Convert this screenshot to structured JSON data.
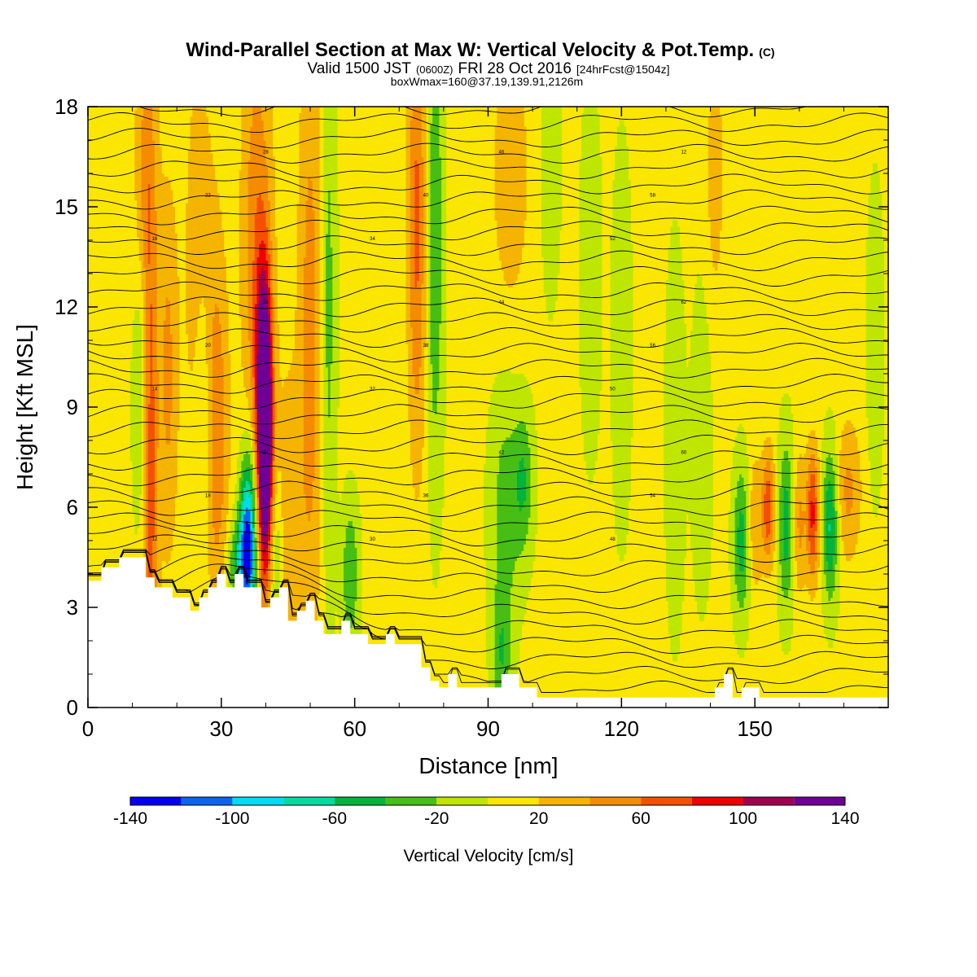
{
  "chart_data": {
    "type": "heatmap",
    "title": "Wind-Parallel Section at Max W: Vertical Velocity & Pot.Temp.",
    "title_mark": "(C)",
    "subtitle": {
      "prefix": "Valid 1500 JST",
      "utc": "(0600Z)",
      "date": "FRI 28 Oct 2016",
      "forecast": "[24hrFcst@1504z]"
    },
    "box_note": "boxWmax=160@37.19,139.91,2126m",
    "xlabel": "Distance [nm]",
    "ylabel": "Height [Kft MSL]",
    "xlim": [
      0,
      180
    ],
    "ylim": [
      0,
      18
    ],
    "x_ticks": [
      "0",
      "30",
      "60",
      "90",
      "120",
      "150"
    ],
    "y_ticks": [
      "0",
      "3",
      "6",
      "9",
      "12",
      "15",
      "18"
    ],
    "x_tick_values": [
      0,
      30,
      60,
      90,
      120,
      150
    ],
    "y_tick_values": [
      0,
      3,
      6,
      9,
      12,
      15,
      18
    ],
    "colorbar": {
      "label": "Vertical Velocity [cm/s]",
      "bounds": [
        -140,
        -120,
        -100,
        -80,
        -60,
        -40,
        -20,
        0,
        20,
        40,
        60,
        80,
        100,
        120,
        140
      ],
      "tick_labels": [
        "-140",
        "-100",
        "-60",
        "-20",
        "20",
        "60",
        "100",
        "140"
      ],
      "tick_values": [
        -140,
        -100,
        -60,
        -20,
        20,
        60,
        100,
        140
      ],
      "colors": [
        "#0000f0",
        "#0a64f0",
        "#00dcf0",
        "#00dca0",
        "#00b43c",
        "#46be14",
        "#bee600",
        "#fae600",
        "#f5b400",
        "#f58c00",
        "#f55000",
        "#f00000",
        "#a00050",
        "#6e0096"
      ]
    },
    "background_value": 5,
    "features": [
      {
        "x": 14,
        "z": 7.0,
        "w": 70,
        "wx": 1.2,
        "wz": 5.5
      },
      {
        "x": 12,
        "z": 9.5,
        "w": -30,
        "wx": 1.3,
        "wz": 3.0
      },
      {
        "x": 18,
        "z": 10.0,
        "w": 40,
        "wx": 1.5,
        "wz": 4.0
      },
      {
        "x": 13,
        "z": 16.0,
        "w": 40,
        "wx": 1.8,
        "wz": 3.0
      },
      {
        "x": 29,
        "z": 8.0,
        "w": 50,
        "wx": 1.8,
        "wz": 4.0
      },
      {
        "x": 26,
        "z": 9.0,
        "w": -30,
        "wx": 1.5,
        "wz": 3.5
      },
      {
        "x": 25,
        "z": 13.0,
        "w": 30,
        "wx": 2.5,
        "wz": 5.0
      },
      {
        "x": 36,
        "z": 5.0,
        "w": -130,
        "wx": 1.3,
        "wz": 1.8
      },
      {
        "x": 34,
        "z": 4.2,
        "w": -50,
        "wx": 2.0,
        "wz": 1.0
      },
      {
        "x": 40,
        "z": 7.0,
        "w": 130,
        "wx": 1.2,
        "wz": 2.8
      },
      {
        "x": 39.5,
        "z": 10.0,
        "w": 100,
        "wx": 1.2,
        "wz": 2.5
      },
      {
        "x": 38,
        "z": 14.0,
        "w": 50,
        "wx": 2.5,
        "wz": 5.0
      },
      {
        "x": 42,
        "z": 4.5,
        "w": -40,
        "wx": 1.2,
        "wz": 2.0
      },
      {
        "x": 45,
        "z": 6.0,
        "w": 30,
        "wx": 2.0,
        "wz": 3.0
      },
      {
        "x": 50,
        "z": 11.0,
        "w": 45,
        "wx": 2.0,
        "wz": 7.0
      },
      {
        "x": 54,
        "z": 12.0,
        "w": -35,
        "wx": 1.2,
        "wz": 6.0
      },
      {
        "x": 59,
        "z": 4.0,
        "w": -45,
        "wx": 1.3,
        "wz": 1.5
      },
      {
        "x": 74,
        "z": 14.5,
        "w": 60,
        "wx": 1.5,
        "wz": 5.0
      },
      {
        "x": 78,
        "z": 14.0,
        "w": -45,
        "wx": 1.3,
        "wz": 5.0
      },
      {
        "x": 94,
        "z": 6.0,
        "w": -35,
        "wx": 2.5,
        "wz": 2.5
      },
      {
        "x": 98,
        "z": 6.8,
        "w": -40,
        "wx": 1.5,
        "wz": 1.5
      },
      {
        "x": 95,
        "z": 16.0,
        "w": 30,
        "wx": 3.0,
        "wz": 3.0
      },
      {
        "x": 104,
        "z": 16.5,
        "w": -20,
        "wx": 1.5,
        "wz": 3.0
      },
      {
        "x": 93,
        "z": 1.5,
        "w": -40,
        "wx": 1.5,
        "wz": 1.5
      },
      {
        "x": 113,
        "z": 13.0,
        "w": -25,
        "wx": 1.5,
        "wz": 3.5
      },
      {
        "x": 120,
        "z": 11.0,
        "w": -20,
        "wx": 1.5,
        "wz": 4.0
      },
      {
        "x": 132,
        "z": 8.0,
        "w": -20,
        "wx": 1.5,
        "wz": 4.0
      },
      {
        "x": 138,
        "z": 8.0,
        "w": -25,
        "wx": 1.5,
        "wz": 3.0
      },
      {
        "x": 141,
        "z": 16.0,
        "w": 25,
        "wx": 1.5,
        "wz": 3.0
      },
      {
        "x": 147,
        "z": 5.0,
        "w": -55,
        "wx": 1.3,
        "wz": 1.6
      },
      {
        "x": 150,
        "z": 5.5,
        "w": 35,
        "wx": 1.2,
        "wz": 1.5
      },
      {
        "x": 153,
        "z": 6.0,
        "w": 70,
        "wx": 1.0,
        "wz": 1.2
      },
      {
        "x": 157,
        "z": 5.5,
        "w": -55,
        "wx": 1.2,
        "wz": 1.8
      },
      {
        "x": 160,
        "z": 5.5,
        "w": 40,
        "wx": 1.0,
        "wz": 1.5
      },
      {
        "x": 163,
        "z": 5.8,
        "w": 80,
        "wx": 1.0,
        "wz": 1.4
      },
      {
        "x": 167,
        "z": 5.5,
        "w": -70,
        "wx": 1.2,
        "wz": 1.6
      },
      {
        "x": 171,
        "z": 6.5,
        "w": 40,
        "wx": 2.0,
        "wz": 1.5
      },
      {
        "x": 177,
        "z": 11.0,
        "w": -25,
        "wx": 1.2,
        "wz": 3.0
      }
    ],
    "terrain_kft": [
      [
        0,
        3.8
      ],
      [
        3,
        3.8
      ],
      [
        3,
        4.2
      ],
      [
        7,
        4.2
      ],
      [
        7,
        4.5
      ],
      [
        13,
        4.5
      ],
      [
        13,
        3.9
      ],
      [
        15,
        3.9
      ],
      [
        15,
        3.6
      ],
      [
        19,
        3.6
      ],
      [
        19,
        3.3
      ],
      [
        23,
        3.3
      ],
      [
        23,
        2.9
      ],
      [
        25,
        2.9
      ],
      [
        25,
        3.3
      ],
      [
        27,
        3.3
      ],
      [
        27,
        3.6
      ],
      [
        29,
        3.6
      ],
      [
        29,
        4.0
      ],
      [
        31,
        4.0
      ],
      [
        31,
        3.6
      ],
      [
        33,
        3.6
      ],
      [
        33,
        4.0
      ],
      [
        35,
        4.0
      ],
      [
        35,
        3.6
      ],
      [
        39,
        3.6
      ],
      [
        39,
        3.0
      ],
      [
        41,
        3.0
      ],
      [
        41,
        3.3
      ],
      [
        43,
        3.3
      ],
      [
        43,
        3.6
      ],
      [
        45,
        3.6
      ],
      [
        45,
        2.6
      ],
      [
        47,
        2.6
      ],
      [
        47,
        2.9
      ],
      [
        49,
        2.9
      ],
      [
        49,
        3.2
      ],
      [
        51,
        3.2
      ],
      [
        51,
        2.6
      ],
      [
        53,
        2.6
      ],
      [
        53,
        2.2
      ],
      [
        57,
        2.2
      ],
      [
        57,
        2.6
      ],
      [
        59,
        2.6
      ],
      [
        59,
        2.2
      ],
      [
        63,
        2.2
      ],
      [
        63,
        1.9
      ],
      [
        67,
        1.9
      ],
      [
        67,
        2.2
      ],
      [
        69,
        2.2
      ],
      [
        69,
        1.9
      ],
      [
        75,
        1.9
      ],
      [
        75,
        1.2
      ],
      [
        77,
        1.2
      ],
      [
        77,
        0.8
      ],
      [
        79,
        0.8
      ],
      [
        79,
        0.6
      ],
      [
        81,
        0.6
      ],
      [
        81,
        1.0
      ],
      [
        83,
        1.0
      ],
      [
        83,
        0.6
      ],
      [
        93,
        0.6
      ],
      [
        93,
        1.0
      ],
      [
        97,
        1.0
      ],
      [
        97,
        0.6
      ],
      [
        101,
        0.6
      ],
      [
        101,
        0.3
      ],
      [
        141,
        0.3
      ],
      [
        141,
        0.6
      ],
      [
        143,
        0.6
      ],
      [
        143,
        1.0
      ],
      [
        145,
        1.0
      ],
      [
        145,
        0.3
      ],
      [
        147,
        0.3
      ],
      [
        147,
        0.6
      ],
      [
        151,
        0.6
      ],
      [
        151,
        0.3
      ],
      [
        180,
        0.3
      ]
    ],
    "isentrope_labels": [
      "12",
      "14",
      "16",
      "18",
      "20",
      "22",
      "24",
      "26",
      "28",
      "30",
      "32",
      "34",
      "36",
      "38",
      "40",
      "42",
      "44",
      "46",
      "48",
      "50",
      "52",
      "54",
      "56",
      "58",
      "60",
      "62"
    ]
  }
}
